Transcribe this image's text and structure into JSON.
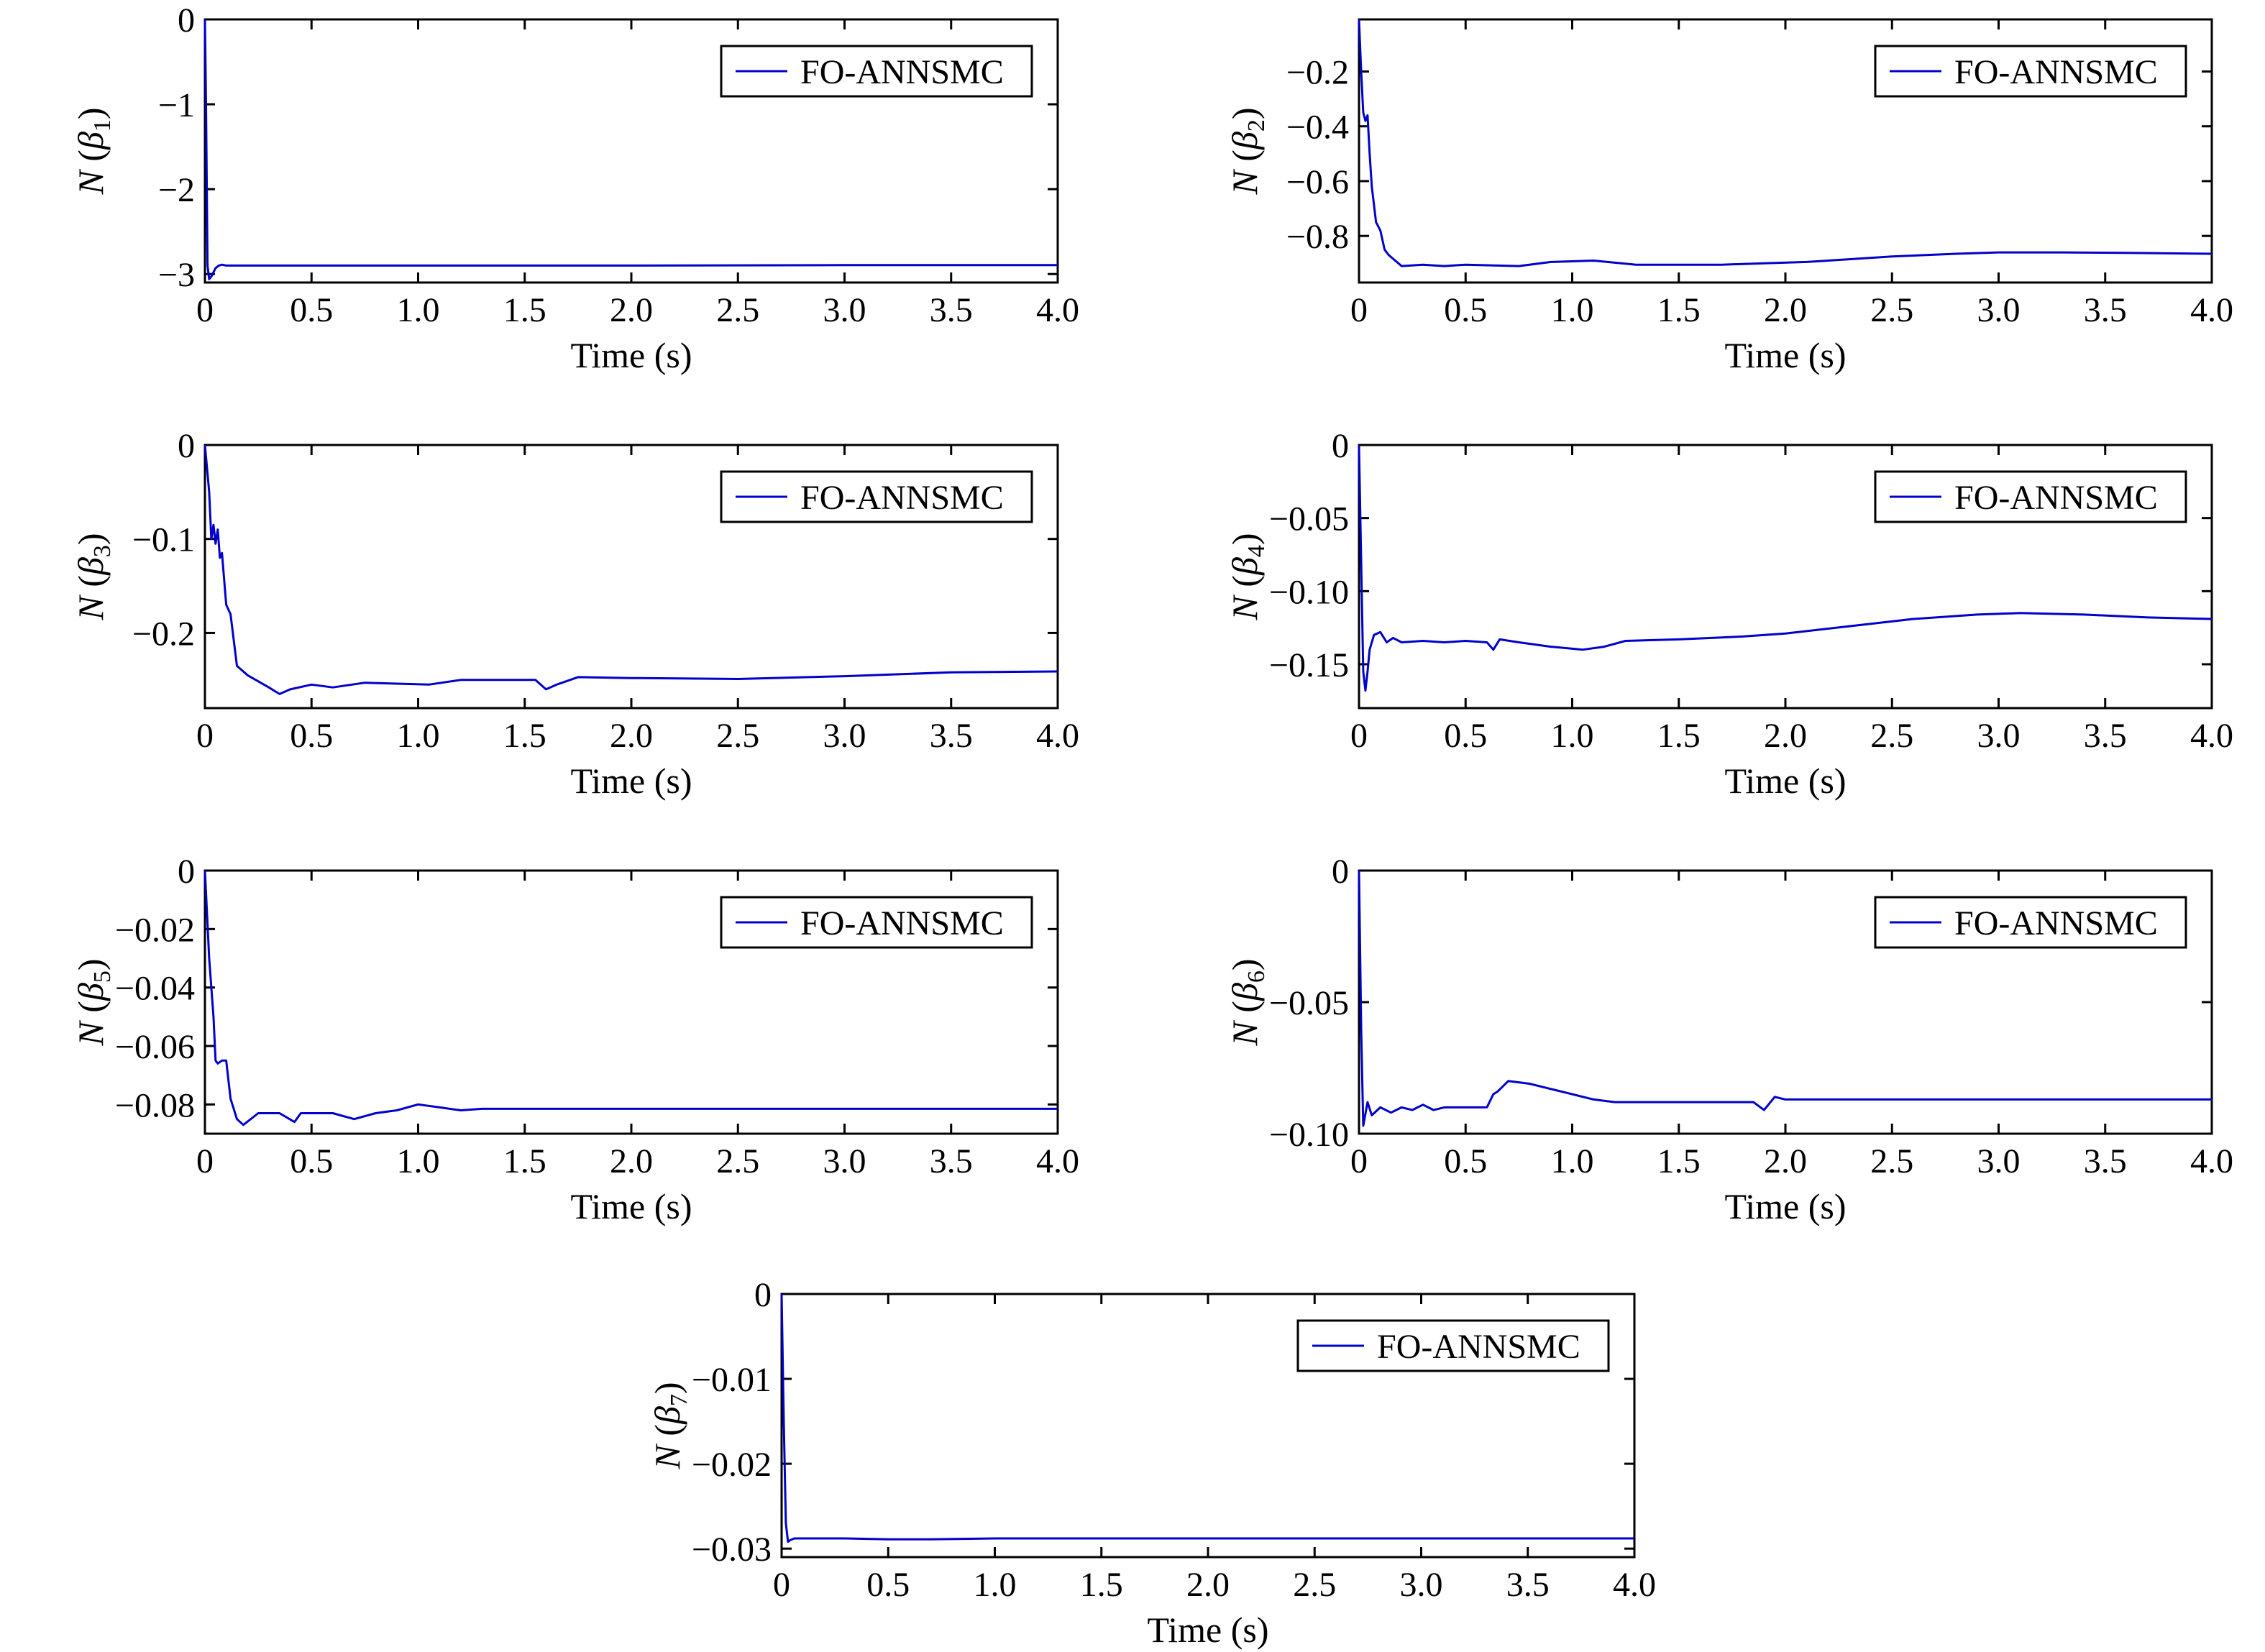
{
  "figure": {
    "line_color": "#0000cc",
    "frame_color": "#000000",
    "background": "#ffffff"
  },
  "chart_data": [
    {
      "type": "line",
      "title": "",
      "xlabel": "Time (s)",
      "ylabel": {
        "prefix": "N (",
        "symbol": "β",
        "subscript": "1",
        "suffix": ")"
      },
      "xlim": [
        0,
        4
      ],
      "ylim": [
        -3.1,
        0
      ],
      "xticks": [
        0,
        0.5,
        1.0,
        1.5,
        2.0,
        2.5,
        3.0,
        3.5,
        4.0
      ],
      "xtick_labels": [
        "0",
        "0.5",
        "1.0",
        "1.5",
        "2.0",
        "2.5",
        "3.0",
        "3.5",
        "4.0"
      ],
      "yticks": [
        0,
        -1,
        -2,
        -3
      ],
      "ytick_labels": [
        "0",
        "−1",
        "−2",
        "−3"
      ],
      "grid": false,
      "legend_position": "top-right",
      "series": [
        {
          "name": "FO-ANNSMC",
          "color": "#0000cc",
          "x": [
            0,
            0.005,
            0.012,
            0.02,
            0.03,
            0.04,
            0.05,
            0.065,
            0.08,
            0.1,
            0.15,
            0.3,
            1.0,
            2.0,
            3.0,
            4.0
          ],
          "y": [
            0,
            -1.0,
            -2.9,
            -3.06,
            -3.03,
            -2.98,
            -2.93,
            -2.9,
            -2.89,
            -2.9,
            -2.9,
            -2.9,
            -2.9,
            -2.9,
            -2.895,
            -2.895
          ]
        }
      ]
    },
    {
      "type": "line",
      "title": "",
      "xlabel": "Time (s)",
      "ylabel": {
        "prefix": "N (",
        "symbol": "β",
        "subscript": "2",
        "suffix": ")"
      },
      "xlim": [
        0,
        4
      ],
      "ylim": [
        -0.97,
        -0.01
      ],
      "xticks": [
        0,
        0.5,
        1.0,
        1.5,
        2.0,
        2.5,
        3.0,
        3.5,
        4.0
      ],
      "xtick_labels": [
        "0",
        "0.5",
        "1.0",
        "1.5",
        "2.0",
        "2.5",
        "3.0",
        "3.5",
        "4.0"
      ],
      "yticks": [
        -0.2,
        -0.4,
        -0.6,
        -0.8
      ],
      "ytick_labels": [
        "−0.2",
        "−0.4",
        "−0.6",
        "−0.8"
      ],
      "grid": false,
      "legend_position": "top-right",
      "series": [
        {
          "name": "FO-ANNSMC",
          "color": "#0000cc",
          "x": [
            0,
            0.01,
            0.02,
            0.03,
            0.04,
            0.05,
            0.06,
            0.08,
            0.1,
            0.12,
            0.14,
            0.17,
            0.2,
            0.3,
            0.4,
            0.5,
            0.6,
            0.75,
            0.9,
            1.1,
            1.3,
            1.5,
            1.7,
            1.9,
            2.1,
            2.3,
            2.5,
            2.8,
            3.0,
            3.3,
            3.6,
            4.0
          ],
          "y": [
            -0.01,
            -0.2,
            -0.35,
            -0.38,
            -0.36,
            -0.5,
            -0.62,
            -0.75,
            -0.78,
            -0.85,
            -0.87,
            -0.89,
            -0.91,
            -0.905,
            -0.91,
            -0.905,
            -0.907,
            -0.91,
            -0.895,
            -0.89,
            -0.905,
            -0.905,
            -0.905,
            -0.9,
            -0.895,
            -0.885,
            -0.875,
            -0.865,
            -0.86,
            -0.86,
            -0.862,
            -0.865
          ]
        }
      ]
    },
    {
      "type": "line",
      "title": "",
      "xlabel": "Time (s)",
      "ylabel": {
        "prefix": "N (",
        "symbol": "β",
        "subscript": "3",
        "suffix": ")"
      },
      "xlim": [
        0,
        4
      ],
      "ylim": [
        -0.28,
        0
      ],
      "xticks": [
        0,
        0.5,
        1.0,
        1.5,
        2.0,
        2.5,
        3.0,
        3.5,
        4.0
      ],
      "xtick_labels": [
        "0",
        "0.5",
        "1.0",
        "1.5",
        "2.0",
        "2.5",
        "3.0",
        "3.5",
        "4.0"
      ],
      "yticks": [
        0,
        -0.1,
        -0.2
      ],
      "ytick_labels": [
        "0",
        "−0.1",
        "−0.2"
      ],
      "grid": false,
      "legend_position": "top-right",
      "series": [
        {
          "name": "FO-ANNSMC",
          "color": "#0000cc",
          "x": [
            0,
            0.02,
            0.03,
            0.04,
            0.05,
            0.06,
            0.07,
            0.08,
            0.1,
            0.12,
            0.15,
            0.2,
            0.3,
            0.35,
            0.4,
            0.5,
            0.6,
            0.75,
            0.9,
            1.05,
            1.2,
            1.4,
            1.55,
            1.6,
            1.65,
            1.75,
            2.0,
            2.5,
            3.0,
            3.5,
            4.0
          ],
          "y": [
            0,
            -0.05,
            -0.1,
            -0.085,
            -0.105,
            -0.09,
            -0.12,
            -0.115,
            -0.17,
            -0.18,
            -0.235,
            -0.245,
            -0.258,
            -0.265,
            -0.26,
            -0.255,
            -0.258,
            -0.253,
            -0.254,
            -0.255,
            -0.25,
            -0.25,
            -0.25,
            -0.26,
            -0.255,
            -0.247,
            -0.248,
            -0.249,
            -0.246,
            -0.242,
            -0.241
          ]
        }
      ]
    },
    {
      "type": "line",
      "title": "",
      "xlabel": "Time (s)",
      "ylabel": {
        "prefix": "N (",
        "symbol": "β",
        "subscript": "4",
        "suffix": ")"
      },
      "xlim": [
        0,
        4
      ],
      "ylim": [
        -0.18,
        0
      ],
      "xticks": [
        0,
        0.5,
        1.0,
        1.5,
        2.0,
        2.5,
        3.0,
        3.5,
        4.0
      ],
      "xtick_labels": [
        "0",
        "0.5",
        "1.0",
        "1.5",
        "2.0",
        "2.5",
        "3.0",
        "3.5",
        "4.0"
      ],
      "yticks": [
        0,
        -0.05,
        -0.1,
        -0.15
      ],
      "ytick_labels": [
        "0",
        "−0.05",
        "−0.10",
        "−0.15"
      ],
      "grid": false,
      "legend_position": "top-right",
      "series": [
        {
          "name": "FO-ANNSMC",
          "color": "#0000cc",
          "x": [
            0,
            0.01,
            0.02,
            0.03,
            0.04,
            0.05,
            0.07,
            0.1,
            0.13,
            0.16,
            0.2,
            0.3,
            0.4,
            0.5,
            0.6,
            0.63,
            0.66,
            0.75,
            0.9,
            1.05,
            1.15,
            1.25,
            1.5,
            1.8,
            2.0,
            2.3,
            2.6,
            2.9,
            3.1,
            3.4,
            3.7,
            4.0
          ],
          "y": [
            0,
            -0.08,
            -0.155,
            -0.168,
            -0.155,
            -0.14,
            -0.13,
            -0.128,
            -0.135,
            -0.132,
            -0.135,
            -0.134,
            -0.135,
            -0.134,
            -0.135,
            -0.14,
            -0.133,
            -0.135,
            -0.138,
            -0.14,
            -0.138,
            -0.134,
            -0.133,
            -0.131,
            -0.129,
            -0.124,
            -0.119,
            -0.116,
            -0.115,
            -0.116,
            -0.118,
            -0.119
          ]
        }
      ]
    },
    {
      "type": "line",
      "title": "",
      "xlabel": "Time (s)",
      "ylabel": {
        "prefix": "N (",
        "symbol": "β",
        "subscript": "5",
        "suffix": ")"
      },
      "xlim": [
        0,
        4
      ],
      "ylim": [
        -0.09,
        0
      ],
      "xticks": [
        0,
        0.5,
        1.0,
        1.5,
        2.0,
        2.5,
        3.0,
        3.5,
        4.0
      ],
      "xtick_labels": [
        "0",
        "0.5",
        "1.0",
        "1.5",
        "2.0",
        "2.5",
        "3.0",
        "3.5",
        "4.0"
      ],
      "yticks": [
        0,
        -0.02,
        -0.04,
        -0.06,
        -0.08
      ],
      "ytick_labels": [
        "0",
        "−0.02",
        "−0.04",
        "−0.06",
        "−0.08"
      ],
      "grid": false,
      "legend_position": "top-right",
      "series": [
        {
          "name": "FO-ANNSMC",
          "color": "#0000cc",
          "x": [
            0,
            0.02,
            0.04,
            0.05,
            0.06,
            0.08,
            0.1,
            0.12,
            0.15,
            0.18,
            0.25,
            0.35,
            0.42,
            0.45,
            0.5,
            0.6,
            0.7,
            0.8,
            0.9,
            1.0,
            1.1,
            1.2,
            1.3,
            1.5,
            2.0,
            2.5,
            3.0,
            3.5,
            4.0
          ],
          "y": [
            0,
            -0.03,
            -0.05,
            -0.065,
            -0.066,
            -0.065,
            -0.065,
            -0.078,
            -0.085,
            -0.087,
            -0.083,
            -0.083,
            -0.086,
            -0.083,
            -0.083,
            -0.083,
            -0.085,
            -0.083,
            -0.082,
            -0.08,
            -0.081,
            -0.082,
            -0.0815,
            -0.0815,
            -0.0815,
            -0.0815,
            -0.0815,
            -0.0815,
            -0.0815
          ]
        }
      ]
    },
    {
      "type": "line",
      "title": "",
      "xlabel": "Time (s)",
      "ylabel": {
        "prefix": "N (",
        "symbol": "β",
        "subscript": "6",
        "suffix": ")"
      },
      "xlim": [
        0,
        4
      ],
      "ylim": [
        -0.1,
        0
      ],
      "xticks": [
        0,
        0.5,
        1.0,
        1.5,
        2.0,
        2.5,
        3.0,
        3.5,
        4.0
      ],
      "xtick_labels": [
        "0",
        "0.5",
        "1.0",
        "1.5",
        "2.0",
        "2.5",
        "3.0",
        "3.5",
        "4.0"
      ],
      "yticks": [
        0,
        -0.05,
        -0.1
      ],
      "ytick_labels": [
        "0",
        "−0.05",
        "−0.10"
      ],
      "grid": false,
      "legend_position": "top-right",
      "series": [
        {
          "name": "FO-ANNSMC",
          "color": "#0000cc",
          "x": [
            0,
            0.01,
            0.02,
            0.04,
            0.06,
            0.1,
            0.15,
            0.2,
            0.25,
            0.3,
            0.35,
            0.4,
            0.45,
            0.5,
            0.55,
            0.6,
            0.63,
            0.65,
            0.7,
            0.8,
            0.9,
            1.0,
            1.1,
            1.2,
            1.5,
            1.85,
            1.9,
            1.95,
            2.0,
            2.5,
            3.0,
            3.5,
            4.0
          ],
          "y": [
            0,
            -0.06,
            -0.097,
            -0.088,
            -0.093,
            -0.09,
            -0.092,
            -0.09,
            -0.091,
            -0.089,
            -0.091,
            -0.09,
            -0.09,
            -0.09,
            -0.09,
            -0.09,
            -0.085,
            -0.084,
            -0.08,
            -0.081,
            -0.083,
            -0.085,
            -0.087,
            -0.088,
            -0.088,
            -0.088,
            -0.091,
            -0.086,
            -0.087,
            -0.087,
            -0.087,
            -0.087,
            -0.087
          ]
        }
      ]
    },
    {
      "type": "line",
      "title": "",
      "xlabel": "Time (s)",
      "ylabel": {
        "prefix": "N (",
        "symbol": "β",
        "subscript": "7",
        "suffix": ")"
      },
      "xlim": [
        0,
        4
      ],
      "ylim": [
        -0.031,
        0
      ],
      "xticks": [
        0,
        0.5,
        1.0,
        1.5,
        2.0,
        2.5,
        3.0,
        3.5,
        4.0
      ],
      "xtick_labels": [
        "0",
        "0.5",
        "1.0",
        "1.5",
        "2.0",
        "2.5",
        "3.0",
        "3.5",
        "4.0"
      ],
      "yticks": [
        0,
        -0.01,
        -0.02,
        -0.03
      ],
      "ytick_labels": [
        "0",
        "−0.01",
        "−0.02",
        "−0.03"
      ],
      "grid": false,
      "legend_position": "top-right",
      "series": [
        {
          "name": "FO-ANNSMC",
          "color": "#0000cc",
          "x": [
            0,
            0.01,
            0.02,
            0.03,
            0.04,
            0.06,
            0.1,
            0.3,
            0.5,
            0.7,
            1.0,
            1.5,
            2.0,
            2.5,
            3.0,
            3.5,
            4.0
          ],
          "y": [
            0,
            -0.015,
            -0.027,
            -0.0292,
            -0.029,
            -0.0288,
            -0.0288,
            -0.0288,
            -0.0289,
            -0.0289,
            -0.0288,
            -0.0288,
            -0.0288,
            -0.0288,
            -0.0288,
            -0.0288,
            -0.0288
          ]
        }
      ]
    }
  ]
}
